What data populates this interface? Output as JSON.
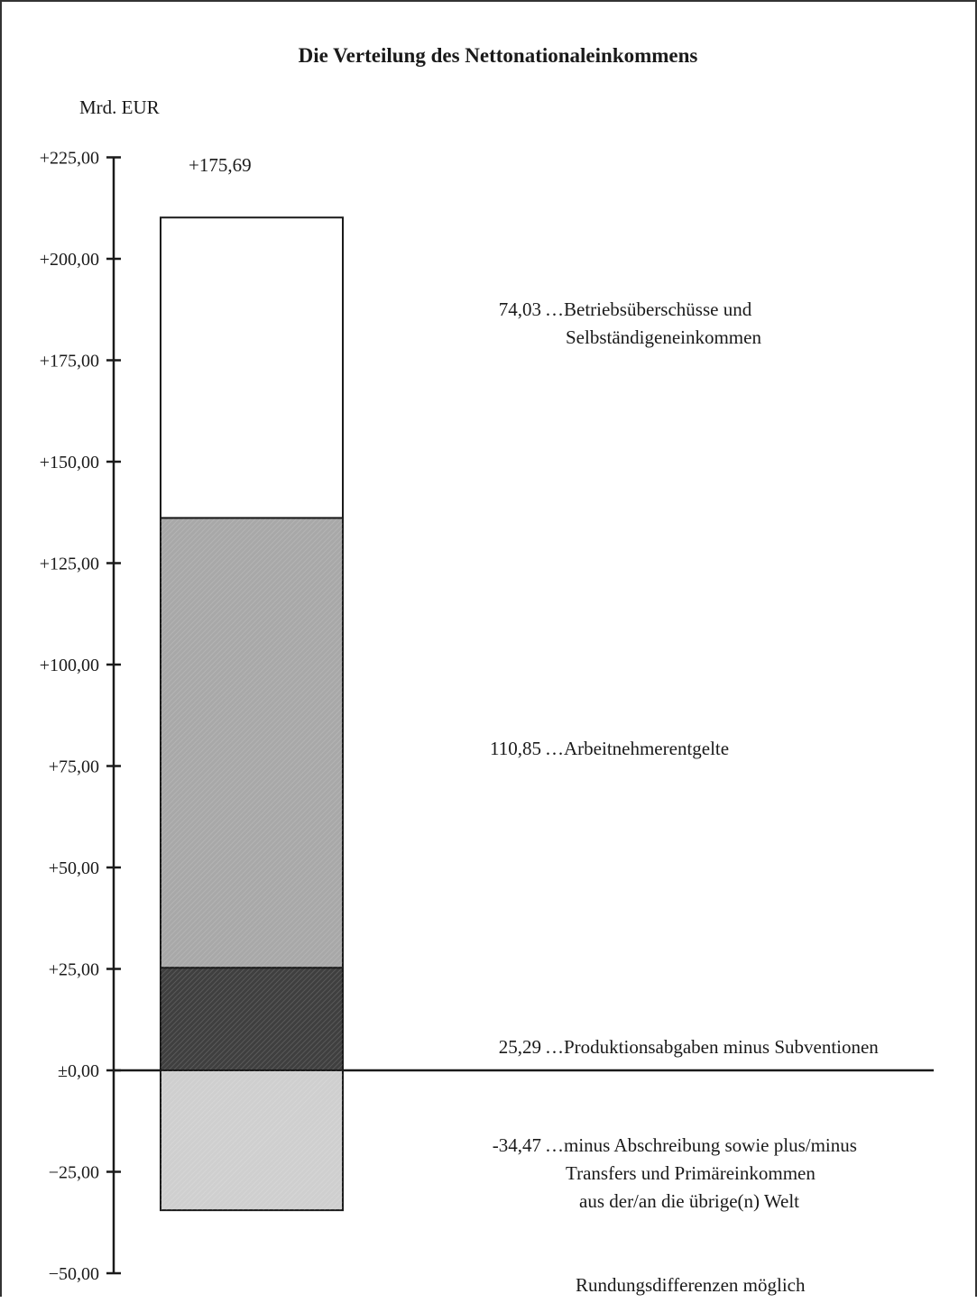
{
  "chart_data": {
    "type": "bar",
    "title": "Die Verteilung des Nettonationaleinkommens",
    "unit_label": "Mrd. EUR",
    "total_label": "+175,69",
    "ylim": [
      -50,
      225
    ],
    "tick_values": [
      225,
      200,
      175,
      150,
      125,
      100,
      75,
      50,
      25,
      0,
      -25,
      -50
    ],
    "tick_labels": [
      "+225,00",
      "+200,00",
      "+175,00",
      "+150,00",
      "+125,00",
      "+100,00",
      "+75,00",
      "+50,00",
      "+25,00",
      "±0,00",
      "−25,00",
      "−50,00"
    ],
    "segments": [
      {
        "from": 0,
        "to": 25.29,
        "value": 25.29,
        "value_label": "25,29",
        "lines": [
          "…Produktionsabgaben minus Subventionen"
        ],
        "fill": "#3f3f3f"
      },
      {
        "from": 25.29,
        "to": 136.14,
        "value": 110.85,
        "value_label": "110,85",
        "lines": [
          "…Arbeitnehmerentgelte"
        ],
        "fill": "#a8a8a8"
      },
      {
        "from": 136.14,
        "to": 210.17,
        "value": 74.03,
        "value_label": "74,03",
        "lines": [
          "…Betriebsüberschüsse und",
          "Selbständigeneinkommen"
        ],
        "fill": "#ffffff"
      },
      {
        "from": -34.47,
        "to": 0,
        "value": -34.47,
        "value_label": "-34,47",
        "lines": [
          "…minus Abschreibung sowie plus/minus",
          "Transfers und Primäreinkommen",
          "aus der/an die übrige(n) Welt"
        ],
        "fill": "#cfcfcf"
      }
    ],
    "footnote": "Rundungsdifferenzen möglich",
    "grid": false,
    "legend": "none"
  }
}
